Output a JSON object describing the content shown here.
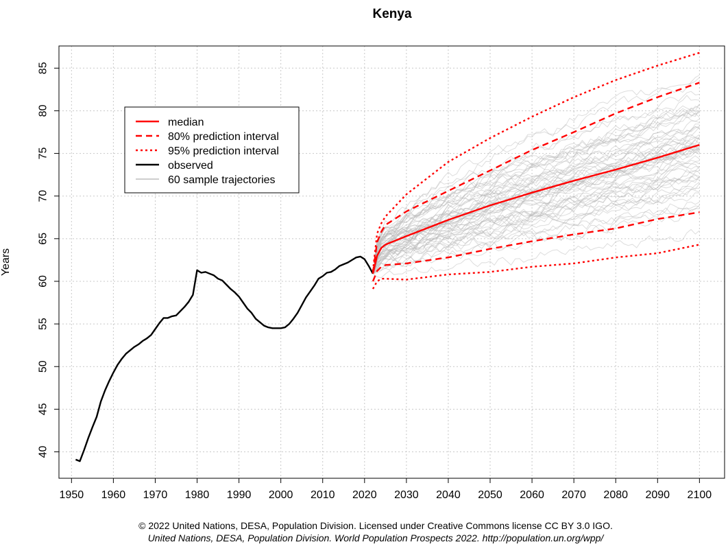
{
  "chart_data": {
    "type": "line",
    "title": "Kenya",
    "xlabel": "",
    "ylabel": "Years",
    "xlim": [
      1947,
      2106
    ],
    "ylim": [
      36.9,
      87.6
    ],
    "x_ticks": [
      1950,
      1960,
      1970,
      1980,
      1990,
      2000,
      2010,
      2020,
      2030,
      2040,
      2050,
      2060,
      2070,
      2080,
      2090,
      2100
    ],
    "y_ticks": [
      40,
      45,
      50,
      55,
      60,
      65,
      70,
      75,
      80,
      85
    ],
    "grid": true,
    "legend_position": "top-left",
    "legend": [
      {
        "label": "median",
        "color": "#ff0000",
        "style": "solid"
      },
      {
        "label": "80% prediction interval",
        "color": "#ff0000",
        "style": "dashed"
      },
      {
        "label": "95% prediction interval",
        "color": "#ff0000",
        "style": "dotted"
      },
      {
        "label": "observed",
        "color": "#000000",
        "style": "solid"
      },
      {
        "label": "60 sample trajectories",
        "color": "#bebebe",
        "style": "solid"
      }
    ],
    "series": [
      {
        "name": "observed",
        "color": "#000000",
        "x": [
          1951,
          1952,
          1953,
          1954,
          1955,
          1956,
          1957,
          1958,
          1959,
          1960,
          1961,
          1962,
          1963,
          1964,
          1965,
          1966,
          1967,
          1968,
          1969,
          1970,
          1971,
          1972,
          1973,
          1974,
          1975,
          1976,
          1977,
          1978,
          1979,
          1980,
          1981,
          1982,
          1983,
          1984,
          1985,
          1986,
          1987,
          1988,
          1989,
          1990,
          1991,
          1992,
          1993,
          1994,
          1995,
          1996,
          1997,
          1998,
          1999,
          2000,
          2001,
          2002,
          2003,
          2004,
          2005,
          2006,
          2007,
          2008,
          2009,
          2010,
          2011,
          2012,
          2013,
          2014,
          2015,
          2016,
          2017,
          2018,
          2019,
          2020,
          2021,
          2022
        ],
        "y": [
          39.1,
          38.9,
          40.2,
          41.6,
          42.9,
          44.1,
          45.9,
          47.2,
          48.3,
          49.3,
          50.2,
          50.9,
          51.5,
          51.9,
          52.3,
          52.6,
          53.0,
          53.3,
          53.7,
          54.4,
          55.1,
          55.7,
          55.7,
          55.9,
          56.0,
          56.5,
          57.0,
          57.6,
          58.4,
          61.3,
          61.0,
          61.1,
          60.9,
          60.7,
          60.3,
          60.1,
          59.6,
          59.1,
          58.7,
          58.2,
          57.5,
          56.8,
          56.3,
          55.6,
          55.2,
          54.8,
          54.6,
          54.5,
          54.5,
          54.5,
          54.6,
          55.0,
          55.6,
          56.3,
          57.2,
          58.1,
          58.8,
          59.5,
          60.3,
          60.6,
          61.0,
          61.1,
          61.4,
          61.8,
          62.0,
          62.2,
          62.5,
          62.8,
          62.9,
          62.6,
          61.8,
          60.9
        ]
      },
      {
        "name": "median",
        "color": "#ff0000",
        "x": [
          2022,
          2023,
          2024,
          2025,
          2030,
          2040,
          2050,
          2060,
          2070,
          2080,
          2090,
          2100
        ],
        "y": [
          60.9,
          63.0,
          63.9,
          64.3,
          65.3,
          67.2,
          68.9,
          70.4,
          71.8,
          73.1,
          74.5,
          76.0
        ]
      },
      {
        "name": "80% prediction interval upper",
        "color": "#ff0000",
        "x": [
          2022,
          2023,
          2024,
          2025,
          2030,
          2040,
          2050,
          2060,
          2070,
          2080,
          2090,
          2100
        ],
        "y": [
          61.0,
          64.6,
          65.8,
          66.6,
          68.2,
          70.6,
          73.0,
          75.4,
          77.5,
          79.7,
          81.6,
          83.3
        ]
      },
      {
        "name": "80% prediction interval lower",
        "color": "#ff0000",
        "x": [
          2022,
          2023,
          2024,
          2025,
          2030,
          2040,
          2050,
          2060,
          2070,
          2080,
          2090,
          2100
        ],
        "y": [
          60.0,
          61.2,
          61.7,
          61.9,
          62.1,
          62.8,
          63.8,
          64.7,
          65.5,
          66.2,
          67.3,
          68.1
        ]
      },
      {
        "name": "95% prediction interval upper",
        "color": "#ff0000",
        "x": [
          2022,
          2023,
          2024,
          2025,
          2030,
          2040,
          2050,
          2060,
          2070,
          2080,
          2090,
          2100
        ],
        "y": [
          61.2,
          65.6,
          66.8,
          67.6,
          70.2,
          74.0,
          76.8,
          79.3,
          81.6,
          83.6,
          85.3,
          86.8
        ]
      },
      {
        "name": "95% prediction interval lower",
        "color": "#ff0000",
        "x": [
          2022,
          2023,
          2024,
          2025,
          2030,
          2040,
          2050,
          2060,
          2070,
          2080,
          2090,
          2100
        ],
        "y": [
          59.1,
          60.0,
          60.3,
          60.3,
          60.2,
          60.8,
          61.1,
          61.7,
          62.1,
          62.8,
          63.3,
          64.3
        ]
      }
    ]
  },
  "footer": {
    "credit_line1": "© 2022 United Nations, DESA, Population Division. Licensed under Creative Commons license CC BY 3.0 IGO.",
    "credit_line2": "United Nations, DESA, Population Division. World Population Prospects 2022. http://population.un.org/wpp/"
  }
}
